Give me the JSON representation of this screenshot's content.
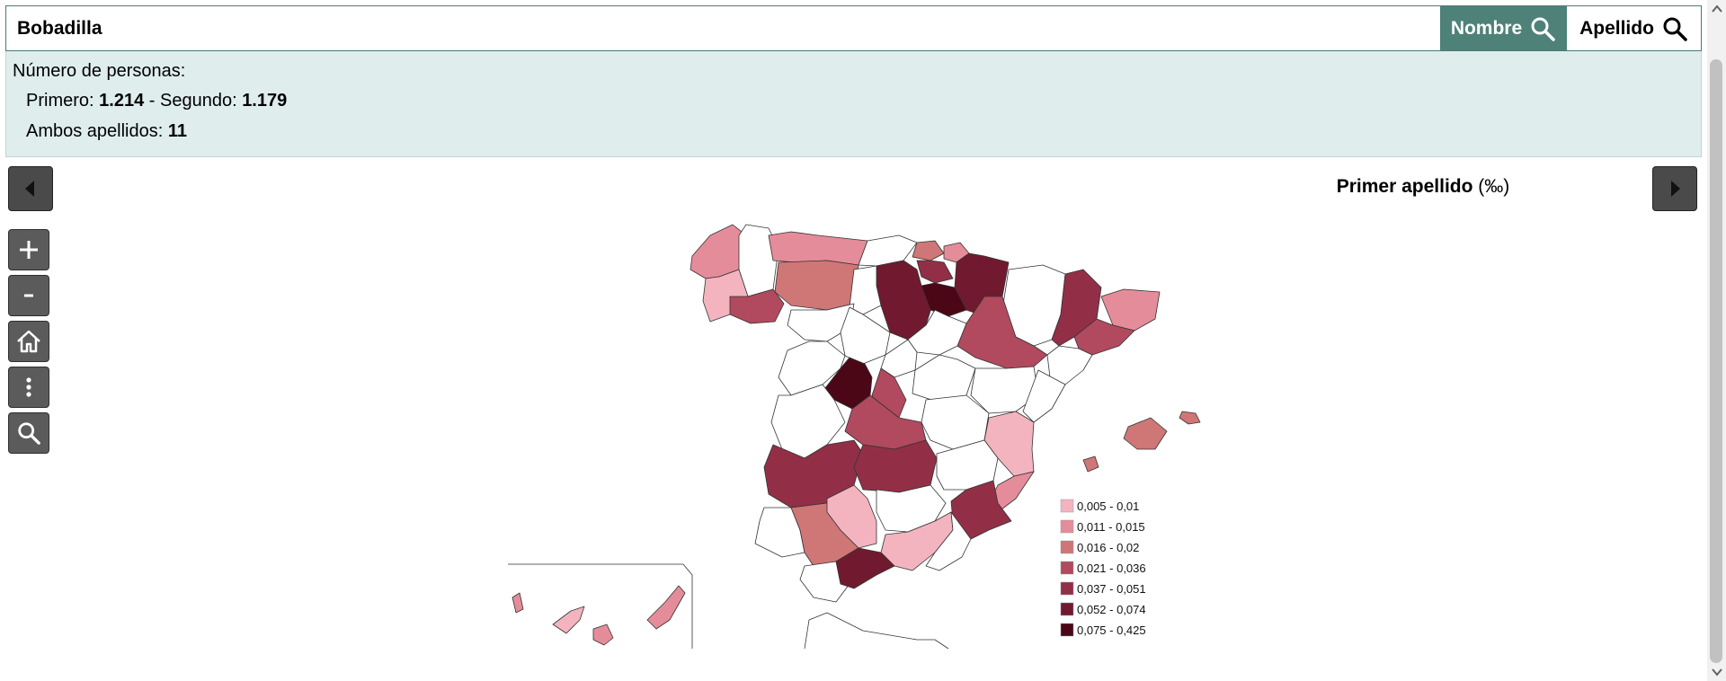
{
  "search": {
    "value": "Bobadilla"
  },
  "buttons": {
    "nombre": "Nombre",
    "apellido": "Apellido"
  },
  "info": {
    "header": "Número de personas:",
    "primero_label": "Primero:",
    "primero_value": "1.214",
    "segundo_label": "Segundo:",
    "segundo_value": "1.179",
    "separator": " - ",
    "ambos_label": "Ambos apellidos:",
    "ambos_value": "11"
  },
  "map": {
    "title": "Primer apellido",
    "title_unit": "(‰)",
    "legend": [
      {
        "label": "0,005 - 0,01",
        "color": "#f3b4bf"
      },
      {
        "label": "0,011 - 0,015",
        "color": "#e58c9a"
      },
      {
        "label": "0,016 - 0,02",
        "color": "#cf7676"
      },
      {
        "label": "0,021 - 0,036",
        "color": "#b14a5e"
      },
      {
        "label": "0,037 - 0,051",
        "color": "#922f47"
      },
      {
        "label": "0,052 - 0,074",
        "color": "#711a2f"
      },
      {
        "label": "0,075 - 0,425",
        "color": "#4b0716"
      }
    ]
  },
  "colors": {
    "accent": "#4e8279",
    "panel_bg": "#dfeeed",
    "tool_bg": "#5b5b5b"
  },
  "icons": {
    "prev": "chevron-left-icon",
    "next": "chevron-right-icon",
    "zoom_in": "plus-icon",
    "zoom_out": "minus-icon",
    "home": "home-icon",
    "more": "more-vertical-icon",
    "search": "search-icon"
  }
}
